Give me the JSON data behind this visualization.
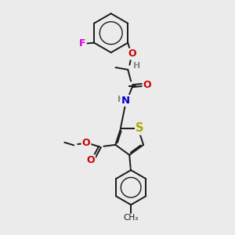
{
  "background_color": "#ebebeb",
  "bond_color": "#1a1a1a",
  "atom_colors": {
    "F": "#dd00dd",
    "O": "#cc0000",
    "N": "#0000cc",
    "S": "#aaaa00",
    "H": "#888888",
    "C": "#1a1a1a"
  },
  "figsize": [
    3.0,
    3.0
  ],
  "dpi": 100
}
